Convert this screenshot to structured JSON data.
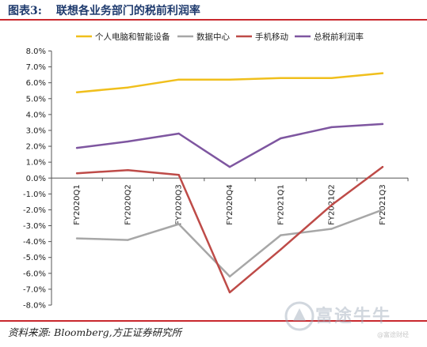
{
  "header": {
    "figure_label": "图表3:",
    "title": "联想各业务部门的税前利润率"
  },
  "source_note": "资料来源: Bloomberg,方正证券研究所",
  "watermark": {
    "brand": "富途牛牛",
    "sub": "@富途财经",
    "icon": "futu-logo-icon"
  },
  "colors": {
    "header_text": "#1f3b6e",
    "rule": "#c9282d",
    "series": [
      "#f0bf1c",
      "#a7a7a7",
      "#be4b48",
      "#7e56a0"
    ]
  },
  "chart_data": {
    "type": "line",
    "categories": [
      "FY2020Q1",
      "FY2020Q2",
      "FY2020Q3",
      "FY2020Q4",
      "FY2021Q1",
      "FY2021Q2",
      "FY2021Q3"
    ],
    "series": [
      {
        "name": "个人电脑和智能设备",
        "values": [
          5.4,
          5.7,
          6.2,
          6.2,
          6.3,
          6.3,
          6.6
        ]
      },
      {
        "name": "数据中心",
        "values": [
          -3.8,
          -3.9,
          -2.9,
          -6.2,
          -3.6,
          -3.2,
          -2.0
        ]
      },
      {
        "name": "手机移动",
        "values": [
          0.3,
          0.5,
          0.2,
          -7.2,
          -4.5,
          -1.7,
          0.7
        ]
      },
      {
        "name": "总税前利润率",
        "values": [
          1.9,
          2.3,
          2.8,
          0.7,
          2.5,
          3.2,
          3.4
        ]
      }
    ],
    "ylim": [
      -8.0,
      8.0
    ],
    "yticks": [
      "8.0%",
      "7.0%",
      "6.0%",
      "5.0%",
      "4.0%",
      "3.0%",
      "2.0%",
      "1.0%",
      "0.0%",
      "-1.0%",
      "-2.0%",
      "-3.0%",
      "-4.0%",
      "-5.0%",
      "-6.0%",
      "-7.0%",
      "-8.0%"
    ],
    "legend_position": "top",
    "grid": false
  }
}
